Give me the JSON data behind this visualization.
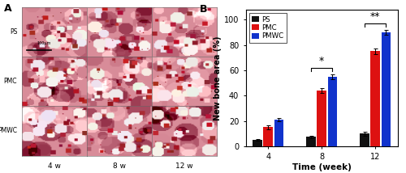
{
  "time_points": [
    "4",
    "8",
    "12"
  ],
  "ps_values": [
    5.0,
    7.5,
    10.0
  ],
  "pmc_values": [
    15.0,
    44.0,
    75.0
  ],
  "pmwc_values": [
    21.0,
    55.0,
    90.0
  ],
  "ps_errors": [
    0.8,
    1.0,
    1.5
  ],
  "pmc_errors": [
    1.5,
    2.0,
    2.5
  ],
  "pmwc_errors": [
    1.5,
    2.0,
    2.0
  ],
  "bar_colors": [
    "#111111",
    "#dd1111",
    "#1133cc"
  ],
  "legend_labels": [
    "PS",
    "PMC",
    "PMWC"
  ],
  "xlabel": "Time (week)",
  "ylabel": "New bone area (%)",
  "ylim": [
    0,
    108
  ],
  "yticks": [
    0,
    20,
    40,
    60,
    80,
    100
  ],
  "panel_a_label": "A",
  "panel_b_label": "B",
  "sig_8w": "*",
  "sig_12w": "**",
  "bar_width": 0.2,
  "row_labels": [
    "PS",
    "PMC",
    "PMWC"
  ],
  "col_labels": [
    "4 w",
    "8 w",
    "12 w"
  ],
  "scalebar_text": "100μm",
  "tissue_base_color": [
    0.85,
    0.55,
    0.6
  ],
  "tissue_dark_color": [
    0.72,
    0.15,
    0.22
  ],
  "tissue_light_color": [
    0.98,
    0.9,
    0.92
  ]
}
